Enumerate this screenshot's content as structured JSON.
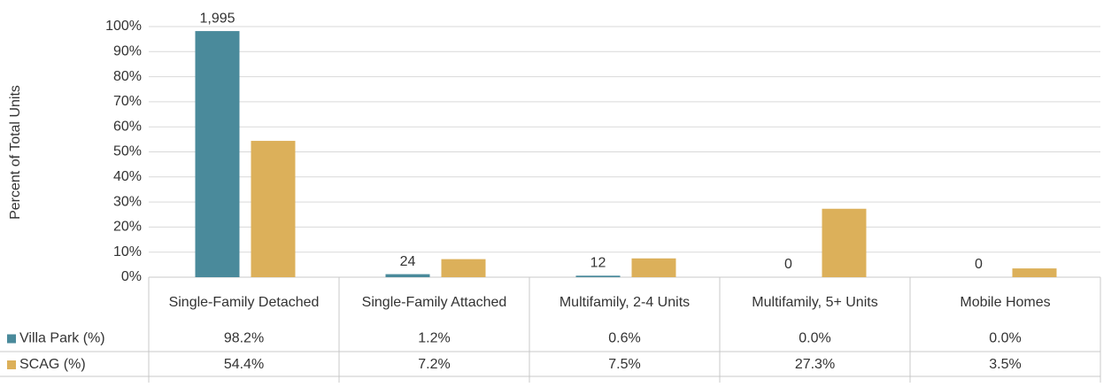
{
  "chart_data": {
    "type": "bar",
    "y_axis_label": "Percent of Total Units",
    "categories": [
      "Single-Family Detached",
      "Single-Family Attached",
      "Multifamily, 2-4 Units",
      "Multifamily, 5+ Units",
      "Mobile Homes"
    ],
    "series": [
      {
        "name": "Villa Park (%)",
        "color": "#4a8a9b",
        "values": [
          98.2,
          1.2,
          0.6,
          0.0,
          0.0
        ],
        "value_labels": [
          "98.2%",
          "1.2%",
          "0.6%",
          "0.0%",
          "0.0%"
        ],
        "data_labels": [
          {
            "value": 1995,
            "label": "1,995"
          },
          24,
          12,
          0,
          0
        ]
      },
      {
        "name": "SCAG (%)",
        "color": "#dcb05a",
        "values": [
          54.4,
          7.2,
          7.5,
          27.3,
          3.5
        ],
        "value_labels": [
          "54.4%",
          "7.2%",
          "7.5%",
          "27.3%",
          "3.5%"
        ]
      }
    ],
    "ylim": [
      0,
      100
    ],
    "yticks": [
      {
        "value": 0,
        "label": "0%"
      },
      {
        "value": 10,
        "label": "10%"
      },
      {
        "value": 20,
        "label": "20%"
      },
      {
        "value": 30,
        "label": "30%"
      },
      {
        "value": 40,
        "label": "40%"
      },
      {
        "value": 50,
        "label": "50%"
      },
      {
        "value": 60,
        "label": "60%"
      },
      {
        "value": 70,
        "label": "70%"
      },
      {
        "value": 80,
        "label": "80%"
      },
      {
        "value": 90,
        "label": "90%"
      },
      {
        "value": 100,
        "label": "100%"
      }
    ],
    "grid": true
  }
}
